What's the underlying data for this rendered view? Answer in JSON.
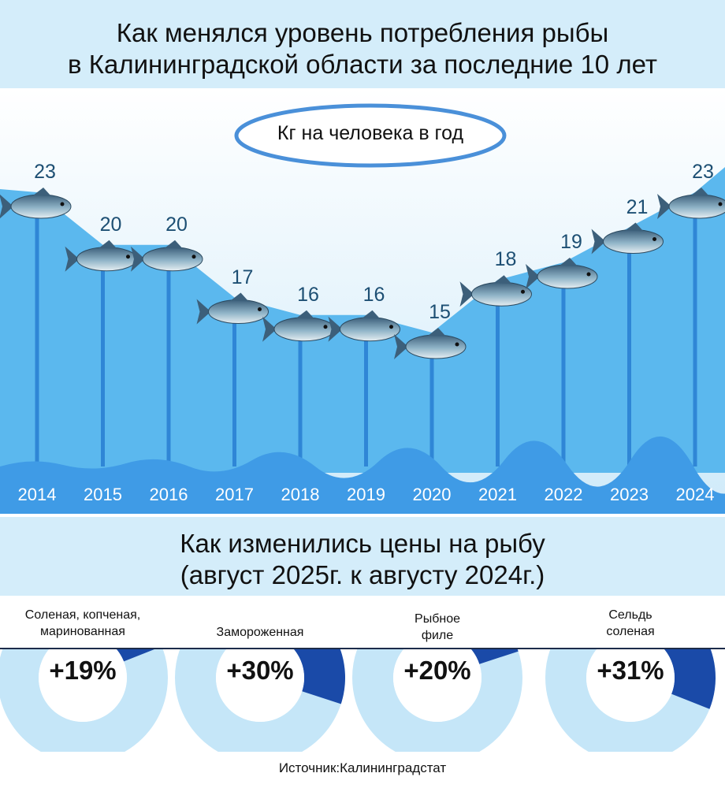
{
  "chart_data": [
    {
      "type": "area",
      "title": "Как менялся уровень потребления рыбы\nв Калининградской области за последние 10 лет",
      "subtitle": "Кг на человека в год",
      "categories": [
        "2014",
        "2015",
        "2016",
        "2017",
        "2018",
        "2019",
        "2020",
        "2021",
        "2022",
        "2023",
        "2024"
      ],
      "values": [
        23,
        20,
        20,
        17,
        16,
        16,
        15,
        18,
        19,
        21,
        23
      ],
      "color": "#5bb8ee"
    },
    {
      "type": "donut",
      "title": "Как изменились цены на рыбу\n(август 2025г. к августу 2024г.)",
      "categories": [
        "Соленая, копченая,\nмаринованная",
        "Замороженная",
        "Рыбное\nфиле",
        "Сельдь\nсоленая"
      ],
      "values": [
        19,
        30,
        20,
        31
      ],
      "value_labels": [
        "+19%",
        "+30%",
        "+20%",
        "+31%"
      ],
      "color": "#1a4aa8",
      "rest_color": "#c5e6f8"
    }
  ],
  "source": "Источник:Калининградстат"
}
